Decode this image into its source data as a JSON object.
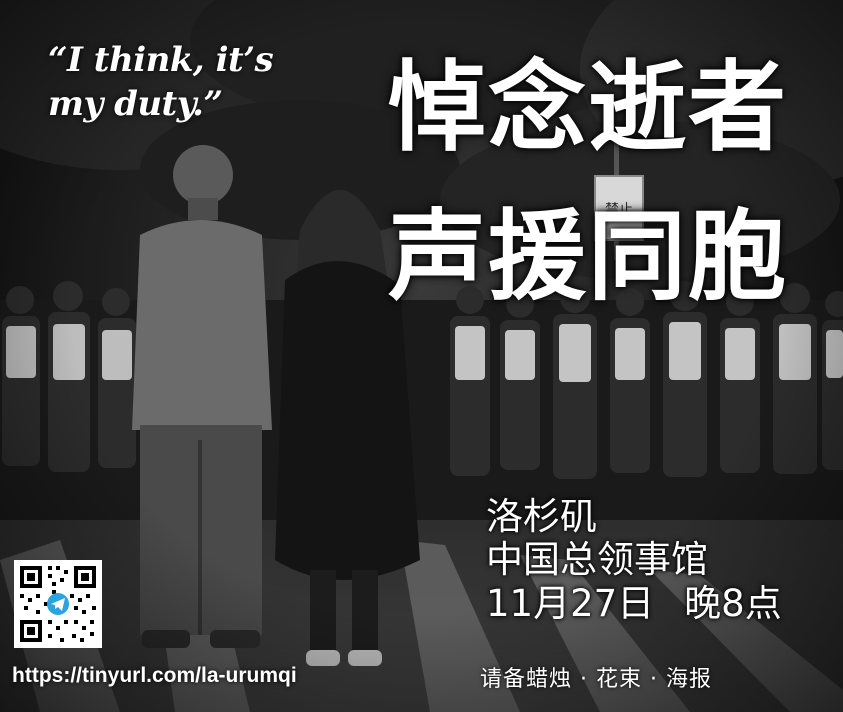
{
  "quote": {
    "line1": "“I think, it’s",
    "line2": "my duty.”"
  },
  "title": {
    "line1": "悼念逝者",
    "line2": "声援同胞"
  },
  "event": {
    "city": "洛杉矶",
    "venue": "中国总领事馆",
    "date": "11月27日",
    "time": "晚8点"
  },
  "note": "请备蜡烛 · 花束 · 海报",
  "link": {
    "url": "https://tinyurl.com/la-urumqi",
    "qr_badge_icon": "telegram-icon"
  },
  "photo": {
    "sign_text": "禁止"
  },
  "colors": {
    "text": "#ffffff",
    "background": "#1a1a1a",
    "telegram": "#2aa3df"
  }
}
